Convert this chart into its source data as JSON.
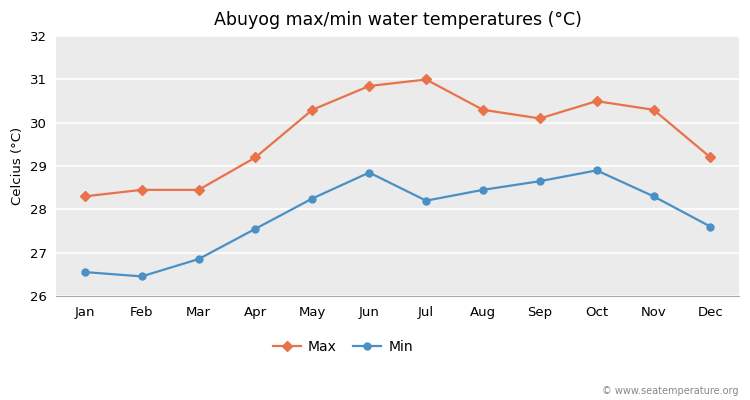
{
  "title": "Abuyog max/min water temperatures (°C)",
  "ylabel": "Celcius (°C)",
  "months": [
    "Jan",
    "Feb",
    "Mar",
    "Apr",
    "May",
    "Jun",
    "Jul",
    "Aug",
    "Sep",
    "Oct",
    "Nov",
    "Dec"
  ],
  "max_temps": [
    28.3,
    28.45,
    28.45,
    29.2,
    30.3,
    30.85,
    31.0,
    30.3,
    30.1,
    30.5,
    30.3,
    29.2
  ],
  "min_temps": [
    26.55,
    26.45,
    26.85,
    27.55,
    28.25,
    28.85,
    28.2,
    28.45,
    28.65,
    28.9,
    28.3,
    27.6
  ],
  "max_color": "#e8734a",
  "min_color": "#4a90c4",
  "fig_bg_color": "#ffffff",
  "plot_bg_color": "#ebebeb",
  "ylim_min": 26,
  "ylim_max": 32,
  "yticks": [
    26,
    27,
    28,
    29,
    30,
    31,
    32
  ],
  "watermark": "© www.seatemperature.org",
  "legend_labels": [
    "Max",
    "Min"
  ]
}
